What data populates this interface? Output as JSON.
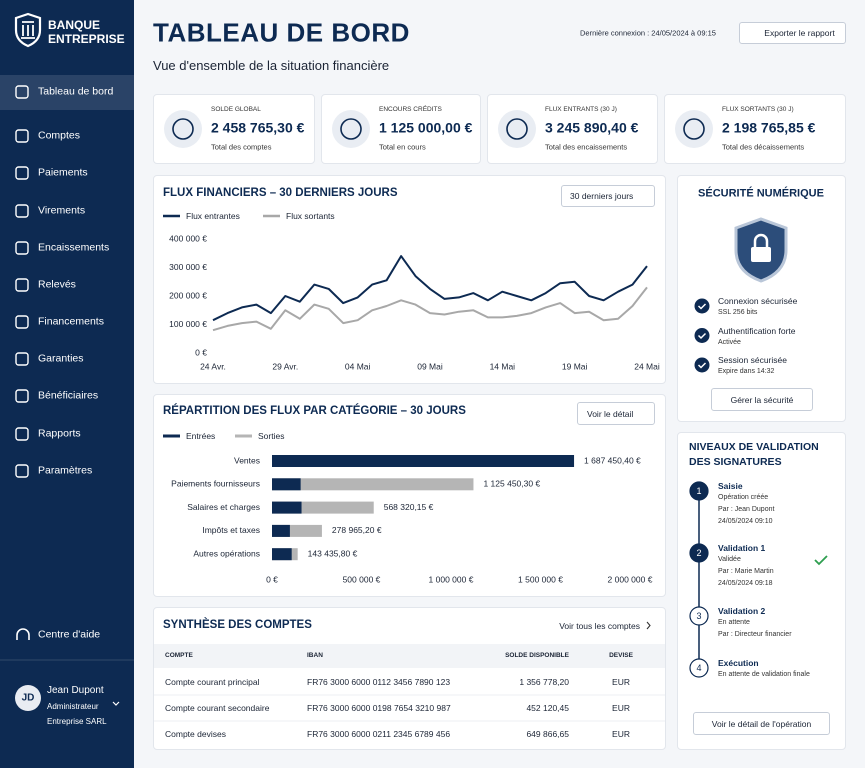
{
  "sidebar": {
    "brand": [
      "BANQUE",
      "ENTREPRISE"
    ],
    "nav": [
      "Tableau de bord",
      "Comptes",
      "Paiements",
      "Virements",
      "Encaissements",
      "Relevés",
      "Financements",
      "Garanties",
      "Bénéficiaires",
      "Rapports",
      "Paramètres"
    ],
    "help": "Centre d'aide",
    "user": {
      "initials": "JD",
      "name": "Jean Dupont",
      "role": "Administrateur",
      "company": "Entreprise SARL"
    }
  },
  "header": {
    "title": "TABLEAU DE BORD",
    "subtitle": "Vue d'ensemble de la situation financière",
    "last_login": "Dernière connexion : 24/05/2024 à 09:15",
    "export_button": "Exporter le rapport"
  },
  "kpis": [
    {
      "label": "SOLDE GLOBAL",
      "value": "2 458 765,30 €",
      "note": "Total des comptes"
    },
    {
      "label": "ENCOURS CRÉDITS",
      "value": "1 125 000,00 €",
      "note": "Total en cours"
    },
    {
      "label": "FLUX ENTRANTS (30 J)",
      "value": "3 245 890,40 €",
      "note": "Total des encaissements"
    },
    {
      "label": "FLUX SORTANTS (30 J)",
      "value": "2 198 765,85 €",
      "note": "Total des décaissements"
    }
  ],
  "chart_data": [
    {
      "type": "line",
      "title": "FLUX FINANCIERS – 30 DERNIERS JOURS",
      "period": "30 derniers jours",
      "categories": [
        "24 Avr.",
        null,
        null,
        null,
        null,
        "29 Avr.",
        null,
        null,
        null,
        null,
        "04 Mai",
        null,
        null,
        null,
        null,
        "09 Mai",
        null,
        null,
        null,
        null,
        "14 Mai",
        null,
        null,
        null,
        null,
        "19 Mai",
        null,
        null,
        null,
        null,
        "24 Mai"
      ],
      "series": [
        {
          "name": "Flux entrantes",
          "color": "#0d2a52",
          "values": [
            115000,
            140000,
            160000,
            170000,
            140000,
            200000,
            180000,
            240000,
            225000,
            175000,
            195000,
            240000,
            255000,
            340000,
            270000,
            225000,
            190000,
            195000,
            210000,
            185000,
            215000,
            200000,
            185000,
            210000,
            245000,
            250000,
            200000,
            185000,
            215000,
            240000,
            305000
          ]
        },
        {
          "name": "Flux sortants",
          "color": "#a8a8a8",
          "values": [
            80000,
            95000,
            105000,
            110000,
            85000,
            150000,
            120000,
            170000,
            155000,
            105000,
            115000,
            150000,
            165000,
            185000,
            170000,
            140000,
            135000,
            145000,
            150000,
            125000,
            125000,
            130000,
            140000,
            160000,
            175000,
            140000,
            145000,
            115000,
            120000,
            165000,
            230000
          ]
        }
      ],
      "ylim": [
        0,
        400000
      ],
      "yticks": [
        {
          "value": 0,
          "label": "0 €"
        },
        {
          "value": 100000,
          "label": "100 000 €"
        },
        {
          "value": 200000,
          "label": "200 000 €"
        },
        {
          "value": 300000,
          "label": "300 000 €"
        },
        {
          "value": 400000,
          "label": "400 000 €"
        }
      ],
      "grid": false
    },
    {
      "type": "bar",
      "orientation": "horizontal",
      "title": "RÉPARTITION DES FLUX PAR CATÉGORIE – 30 JOURS",
      "button": "Voir le détail",
      "categories": [
        "Ventes",
        "Paiements fournisseurs",
        "Salaires et charges",
        "Impôts et taxes",
        "Autres opérations"
      ],
      "series": [
        {
          "name": "Entrées",
          "color": "#0d2a52",
          "values": [
            1687450.4,
            160000,
            165000,
            100000,
            110000
          ],
          "value_labels": [
            "1 687 450,40 €",
            null,
            null,
            null,
            null
          ]
        },
        {
          "name": "Sorties",
          "color": "#b5b5b5",
          "values": [
            1650000,
            1125450.3,
            568320.15,
            278965.2,
            143435.8
          ],
          "value_labels": [
            null,
            "1 125 450,30 €",
            "568 320,15 €",
            "278 965,20 €",
            "143 435,80 €"
          ]
        }
      ],
      "xlim": [
        0,
        2000000
      ],
      "xticks": [
        {
          "value": 0,
          "label": "0 €"
        },
        {
          "value": 500000,
          "label": "500 000 €"
        },
        {
          "value": 1000000,
          "label": "1 000 000 €"
        },
        {
          "value": 1500000,
          "label": "1 500 000 €"
        },
        {
          "value": 2000000,
          "label": "2 000 000 €"
        }
      ]
    }
  ],
  "accounts": {
    "title": "SYNTHÈSE DES COMPTES",
    "link": "Voir tous les comptes",
    "columns": [
      "COMPTE",
      "IBAN",
      "SOLDE DISPONIBLE",
      "DEVISE"
    ],
    "rows": [
      [
        "Compte courant principal",
        "FR76 3000 6000 0112 3456 7890 123",
        "1 356 778,20",
        "EUR"
      ],
      [
        "Compte courant secondaire",
        "FR76 3000 6000 0198 7654 3210 987",
        "452 120,45",
        "EUR"
      ],
      [
        "Compte devises",
        "FR76 3000 6000 0211 2345 6789 456",
        "649 866,65",
        "EUR"
      ]
    ]
  },
  "security": {
    "title": "SÉCURITÉ NUMÉRIQUE",
    "items": [
      {
        "title": "Connexion sécurisée",
        "detail": "SSL 256 bits"
      },
      {
        "title": "Authentification forte",
        "detail": "Activée"
      },
      {
        "title": "Session sécurisée",
        "detail": "Expire dans 14:32"
      }
    ],
    "button": "Gérer la sécurité"
  },
  "validation": {
    "title": "NIVEAUX DE VALIDATION DES SIGNATURES",
    "steps": [
      {
        "number": 1,
        "title": "Saisie",
        "lines": [
          "Opération créée",
          "Par : Jean Dupont",
          "24/05/2024 09:10"
        ]
      },
      {
        "number": 2,
        "title": "Validation 1",
        "lines": [
          "Validée",
          "Par : Marie Martin",
          "24/05/2024 09:18"
        ]
      },
      {
        "number": 3,
        "title": "Validation 2",
        "lines": [
          "En attente",
          "Par : Directeur financier"
        ]
      },
      {
        "number": 4,
        "title": "Exécution",
        "lines": [
          "En attente de validation finale"
        ]
      }
    ],
    "button": "Voir le détail de l'opération"
  }
}
